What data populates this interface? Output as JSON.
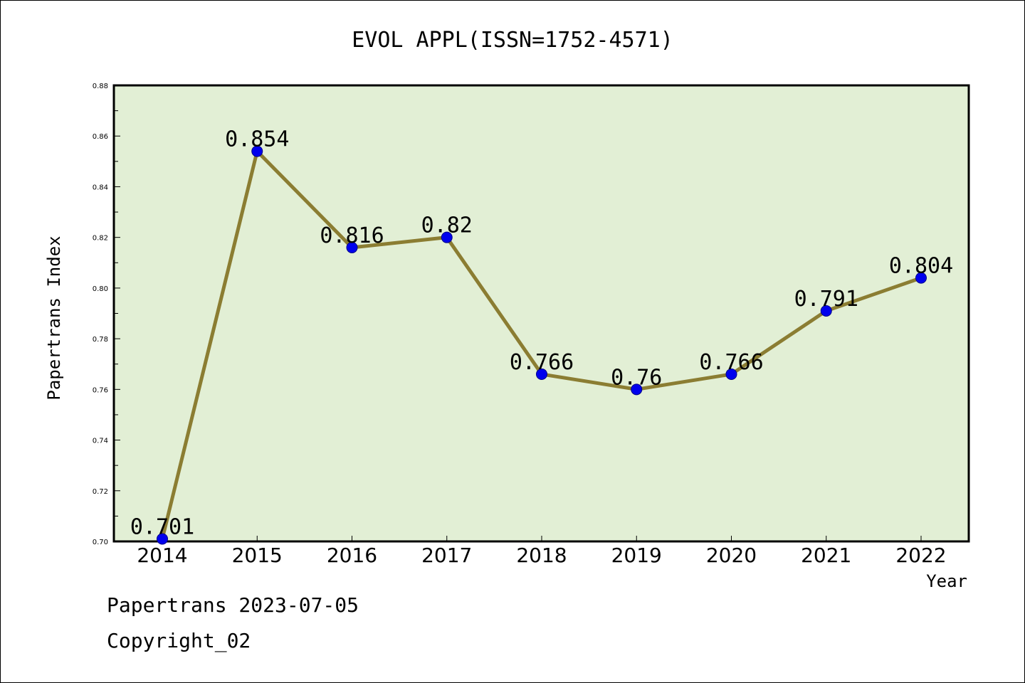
{
  "chart_data": {
    "type": "line",
    "title": "EVOL APPL(ISSN=1752-4571)",
    "xlabel": "Year",
    "ylabel": "Papertrans Index",
    "categories": [
      "2014",
      "2015",
      "2016",
      "2017",
      "2018",
      "2019",
      "2020",
      "2021",
      "2022"
    ],
    "series": [
      {
        "values": [
          0.701,
          0.854,
          0.816,
          0.82,
          0.766,
          0.76,
          0.766,
          0.791,
          0.804
        ]
      }
    ],
    "data_labels": [
      "0.701",
      "0.854",
      "0.816",
      "0.82",
      "0.766",
      "0.76",
      "0.766",
      "0.791",
      "0.804"
    ],
    "ylim": [
      0.7,
      0.88
    ],
    "yticks": [
      "0.70",
      "0.72",
      "0.74",
      "0.76",
      "0.78",
      "0.80",
      "0.82",
      "0.84",
      "0.86",
      "0.88"
    ],
    "grid": false,
    "colors": {
      "plot_background": "#e2efd5",
      "line": "#8b7d32",
      "marker": "#0000ee",
      "axis": "#000000"
    }
  },
  "footer": {
    "line1": "Papertrans 2023-07-05",
    "line2": "Copyright_02"
  }
}
